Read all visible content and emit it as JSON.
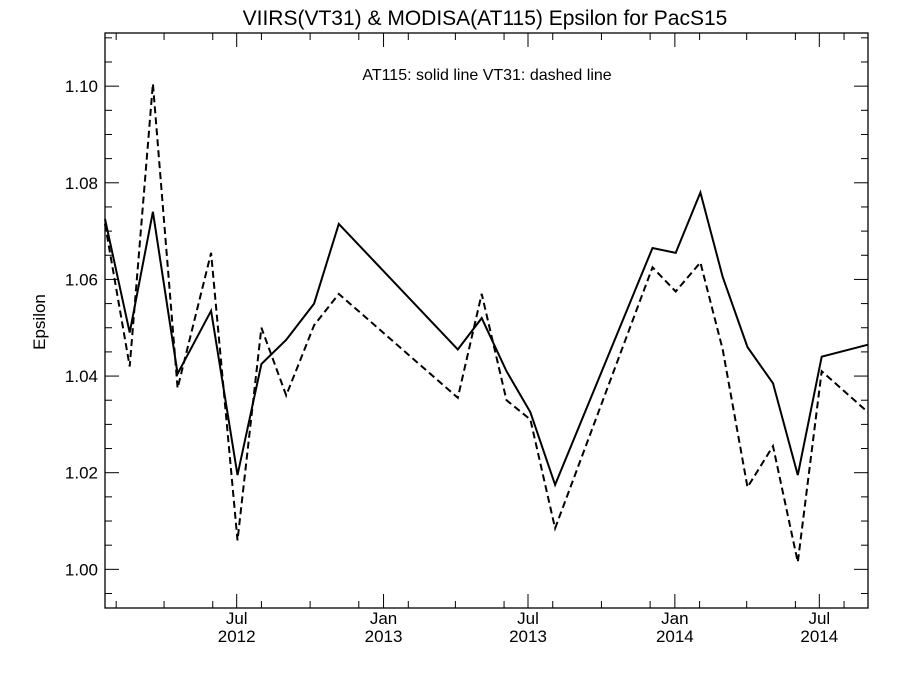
{
  "chart_data": {
    "type": "line",
    "title": "VIIRS(VT31) & MODISA(AT115)  Epsilon for PacS15",
    "annotation": "AT115: solid line   VT31: dashed line",
    "xlabel": "",
    "ylabel": "Epsilon",
    "ylim": [
      0.992,
      1.111
    ],
    "y_ticks": [
      {
        "value": 1.0,
        "label": "1.00"
      },
      {
        "value": 1.02,
        "label": "1.02"
      },
      {
        "value": 1.04,
        "label": "1.04"
      },
      {
        "value": 1.06,
        "label": "1.06"
      },
      {
        "value": 1.08,
        "label": "1.08"
      },
      {
        "value": 1.1,
        "label": "1.10"
      }
    ],
    "xlim": [
      "2012-01-18",
      "2014-08-31"
    ],
    "x_ticks": [
      {
        "date": "2012-07-01",
        "label": "Jul",
        "year": "2012"
      },
      {
        "date": "2013-01-01",
        "label": "Jan",
        "year": "2013"
      },
      {
        "date": "2013-07-01",
        "label": "Jul",
        "year": "2013"
      },
      {
        "date": "2014-01-01",
        "label": "Jan",
        "year": "2014"
      },
      {
        "date": "2014-07-01",
        "label": "Jul",
        "year": "2014"
      }
    ],
    "grid": false,
    "series": [
      {
        "name": "AT115",
        "style": "solid",
        "color": "#000000",
        "points": [
          {
            "x": "2012-01-18",
            "y": 1.0725
          },
          {
            "x": "2012-02-18",
            "y": 1.049
          },
          {
            "x": "2012-03-18",
            "y": 1.074
          },
          {
            "x": "2012-04-18",
            "y": 1.0405
          },
          {
            "x": "2012-05-30",
            "y": 1.0535
          },
          {
            "x": "2012-07-02",
            "y": 1.0195
          },
          {
            "x": "2012-08-01",
            "y": 1.0425
          },
          {
            "x": "2012-09-01",
            "y": 1.0475
          },
          {
            "x": "2012-10-06",
            "y": 1.055
          },
          {
            "x": "2012-11-06",
            "y": 1.0715
          },
          {
            "x": "2013-04-04",
            "y": 1.0455
          },
          {
            "x": "2013-05-04",
            "y": 1.052
          },
          {
            "x": "2013-06-04",
            "y": 1.041
          },
          {
            "x": "2013-07-04",
            "y": 1.0325
          },
          {
            "x": "2013-08-04",
            "y": 1.0175
          },
          {
            "x": "2013-12-04",
            "y": 1.0665
          },
          {
            "x": "2014-01-02",
            "y": 1.0655
          },
          {
            "x": "2014-02-02",
            "y": 1.078
          },
          {
            "x": "2014-03-02",
            "y": 1.0605
          },
          {
            "x": "2014-04-02",
            "y": 1.046
          },
          {
            "x": "2014-05-04",
            "y": 1.0385
          },
          {
            "x": "2014-06-04",
            "y": 1.0195
          },
          {
            "x": "2014-07-04",
            "y": 1.044
          },
          {
            "x": "2014-08-31",
            "y": 1.0465
          }
        ]
      },
      {
        "name": "VT31",
        "style": "dashed",
        "color": "#000000",
        "points": [
          {
            "x": "2012-01-18",
            "y": 1.0715
          },
          {
            "x": "2012-02-18",
            "y": 1.042
          },
          {
            "x": "2012-03-18",
            "y": 1.1005
          },
          {
            "x": "2012-04-18",
            "y": 1.0375
          },
          {
            "x": "2012-05-30",
            "y": 1.0655
          },
          {
            "x": "2012-07-02",
            "y": 1.006
          },
          {
            "x": "2012-08-01",
            "y": 1.05
          },
          {
            "x": "2012-09-01",
            "y": 1.036
          },
          {
            "x": "2012-10-06",
            "y": 1.0505
          },
          {
            "x": "2012-11-06",
            "y": 1.057
          },
          {
            "x": "2013-04-04",
            "y": 1.0355
          },
          {
            "x": "2013-05-04",
            "y": 1.057
          },
          {
            "x": "2013-06-04",
            "y": 1.035
          },
          {
            "x": "2013-07-04",
            "y": 1.031
          },
          {
            "x": "2013-08-04",
            "y": 1.0085
          },
          {
            "x": "2013-12-04",
            "y": 1.0625
          },
          {
            "x": "2014-01-02",
            "y": 1.0575
          },
          {
            "x": "2014-02-02",
            "y": 1.0635
          },
          {
            "x": "2014-03-02",
            "y": 1.0455
          },
          {
            "x": "2014-04-02",
            "y": 1.017
          },
          {
            "x": "2014-05-04",
            "y": 1.0255
          },
          {
            "x": "2014-06-04",
            "y": 1.0015
          },
          {
            "x": "2014-07-04",
            "y": 1.041
          },
          {
            "x": "2014-08-31",
            "y": 1.0325
          }
        ]
      }
    ]
  }
}
